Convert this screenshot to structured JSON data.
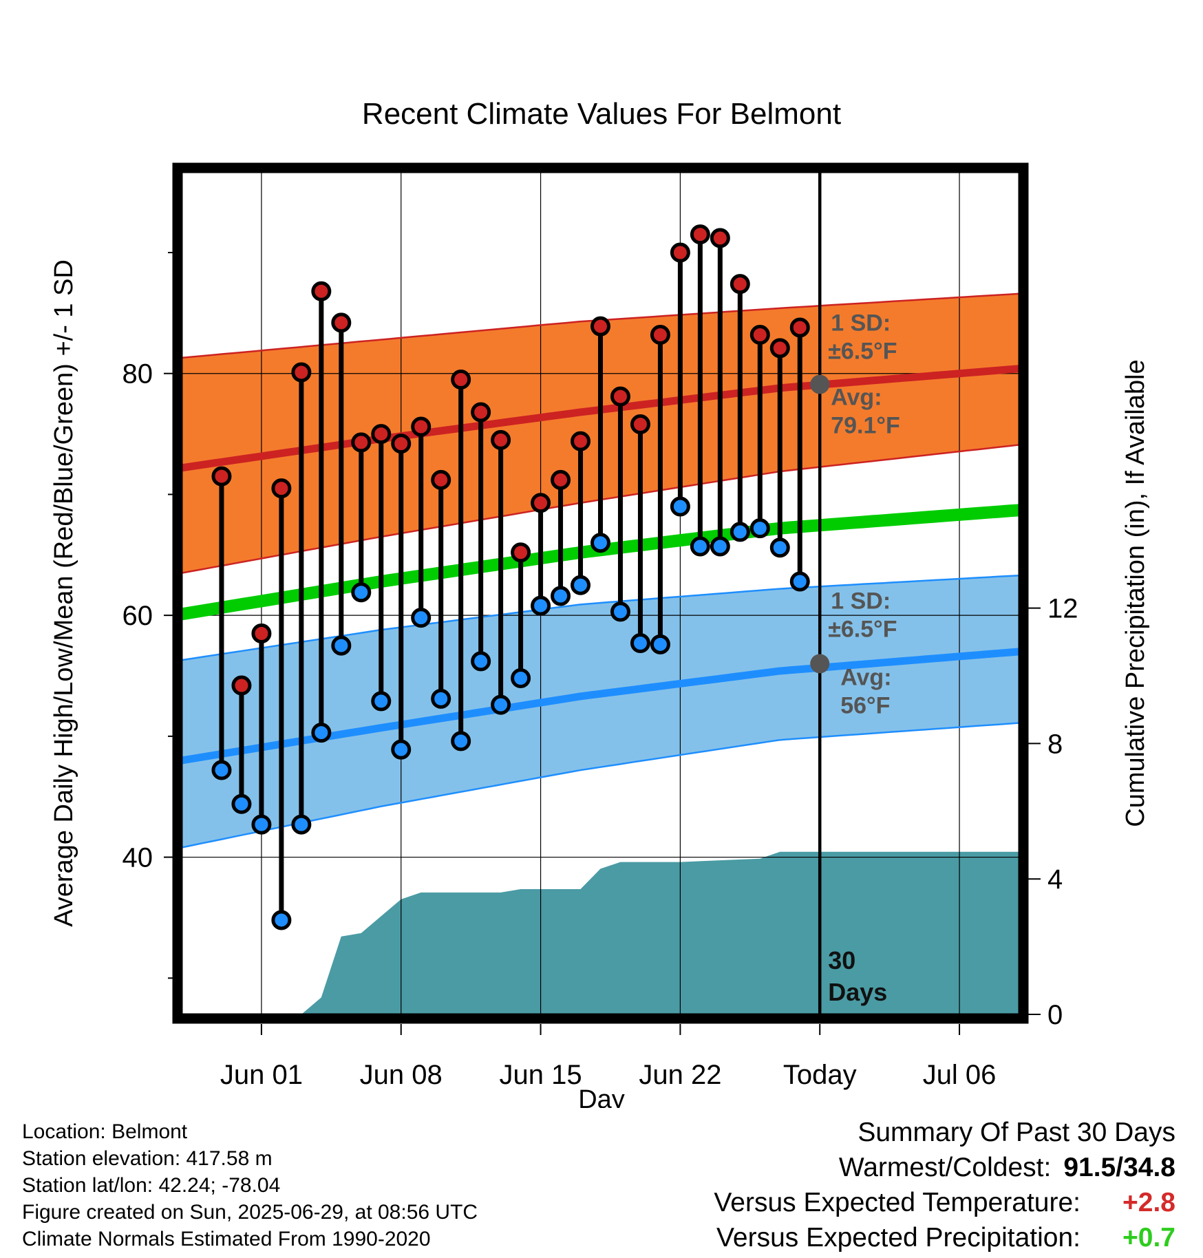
{
  "chart_data": {
    "type": "line",
    "title": "Recent Climate Values For Belmont",
    "xlabel": "Day",
    "ylabel": "Average Daily High/Low/Mean (Red/Blue/Green) +/- 1 SD",
    "y2label": "Cumulative Precipitation (in), If Available",
    "xlim": [
      "2025-05-28",
      "2025-07-09"
    ],
    "ylim": [
      27,
      97
    ],
    "y2lim": [
      0,
      25
    ],
    "x_ticks": [
      {
        "date": "2025-06-01",
        "label": "Jun 01"
      },
      {
        "date": "2025-06-08",
        "label": "Jun 08"
      },
      {
        "date": "2025-06-15",
        "label": "Jun 15"
      },
      {
        "date": "2025-06-22",
        "label": "Jun 22"
      },
      {
        "date": "2025-06-29",
        "label": "Today"
      },
      {
        "date": "2025-07-06",
        "label": "Jul 06"
      }
    ],
    "y_ticks": [
      40,
      60,
      80
    ],
    "y2_ticks": [
      0,
      4,
      8,
      12
    ],
    "grid": true,
    "today": "2025-06-29",
    "today_label": "30 Days",
    "colors": {
      "high": "#cc2222",
      "high_band": "#f47b2c",
      "low": "#1e8eff",
      "low_band": "#84c1ea",
      "mean": "#00cc00",
      "precip": "#4a9ba4",
      "marker_dark": "#555555"
    },
    "normals": {
      "dates": [
        "2025-05-28",
        "2025-06-07",
        "2025-06-17",
        "2025-06-27",
        "2025-07-09"
      ],
      "high_avg": [
        72.2,
        74.6,
        76.8,
        78.8,
        80.4
      ],
      "high_sd_upper": [
        81.3,
        82.8,
        84.3,
        85.4,
        86.6
      ],
      "high_sd_lower": [
        63.5,
        66.5,
        69.3,
        71.9,
        74.1
      ],
      "mean": [
        60.1,
        62.8,
        65.2,
        67.2,
        68.7
      ],
      "low_avg": [
        48.0,
        50.7,
        53.3,
        55.4,
        57.0
      ],
      "low_sd_upper": [
        56.3,
        58.8,
        60.9,
        62.2,
        63.3
      ],
      "low_sd_lower": [
        40.8,
        44.2,
        47.2,
        49.7,
        51.1
      ]
    },
    "annotations": {
      "high_sd": "1 SD:",
      "high_sd_value": "±6.5°F",
      "high_avg": "Avg:",
      "high_avg_value": "79.1°F",
      "high_avg_y": 79.1,
      "low_sd": "1 SD:",
      "low_sd_value": "±6.5°F",
      "low_avg": "Avg:",
      "low_avg_value": "56°F",
      "low_avg_y": 56.0
    },
    "daily": {
      "dates": [
        "2025-05-30",
        "2025-05-31",
        "2025-06-01",
        "2025-06-02",
        "2025-06-03",
        "2025-06-04",
        "2025-06-05",
        "2025-06-06",
        "2025-06-07",
        "2025-06-08",
        "2025-06-09",
        "2025-06-10",
        "2025-06-11",
        "2025-06-12",
        "2025-06-13",
        "2025-06-14",
        "2025-06-15",
        "2025-06-16",
        "2025-06-17",
        "2025-06-18",
        "2025-06-19",
        "2025-06-20",
        "2025-06-21",
        "2025-06-22",
        "2025-06-23",
        "2025-06-24",
        "2025-06-25",
        "2025-06-26",
        "2025-06-27",
        "2025-06-28"
      ],
      "high": [
        71.5,
        54.2,
        58.5,
        70.5,
        80.1,
        86.8,
        84.2,
        74.3,
        75.0,
        74.2,
        75.6,
        71.2,
        79.5,
        76.8,
        74.5,
        65.2,
        69.3,
        71.2,
        74.4,
        83.9,
        78.1,
        75.8,
        83.2,
        90.0,
        91.5,
        91.2,
        87.4,
        83.2,
        82.1,
        83.8
      ],
      "low": [
        47.2,
        44.4,
        42.7,
        34.8,
        42.7,
        50.3,
        57.5,
        61.9,
        52.9,
        48.9,
        59.8,
        53.1,
        49.6,
        56.2,
        52.6,
        54.8,
        60.8,
        61.6,
        62.5,
        66.0,
        60.3,
        57.7,
        57.6,
        69.0,
        65.7,
        65.7,
        66.9,
        67.2,
        65.6,
        62.8
      ]
    },
    "precip": {
      "dates": [
        "2025-05-28",
        "2025-06-03",
        "2025-06-04",
        "2025-06-05",
        "2025-06-06",
        "2025-06-07",
        "2025-06-08",
        "2025-06-09",
        "2025-06-13",
        "2025-06-14",
        "2025-06-17",
        "2025-06-18",
        "2025-06-19",
        "2025-06-22",
        "2025-06-26",
        "2025-06-27",
        "2025-07-09"
      ],
      "values": [
        0,
        0,
        0.5,
        2.3,
        2.4,
        2.9,
        3.4,
        3.6,
        3.6,
        3.7,
        3.7,
        4.3,
        4.5,
        4.5,
        4.6,
        4.8,
        4.8
      ]
    }
  },
  "footer": {
    "location": "Location: Belmont",
    "elevation": "Station elevation: 417.58 m",
    "latlon": "Station lat/lon: 42.24; -78.04",
    "created": "Figure created on Sun, 2025-06-29, at 08:56 UTC",
    "normals": "Climate Normals Estimated From 1990-2020"
  },
  "summary": {
    "title": "Summary Of Past 30 Days",
    "warm_cold_label": "Warmest/Coldest:",
    "warm_cold_value": "91.5/34.8",
    "temp_label": "Versus Expected Temperature:",
    "temp_value": "+2.8",
    "temp_color": "#d42a2a",
    "precip_label": "Versus Expected Precipitation:",
    "precip_value": "+0.7",
    "precip_color": "#2ecc1e"
  }
}
